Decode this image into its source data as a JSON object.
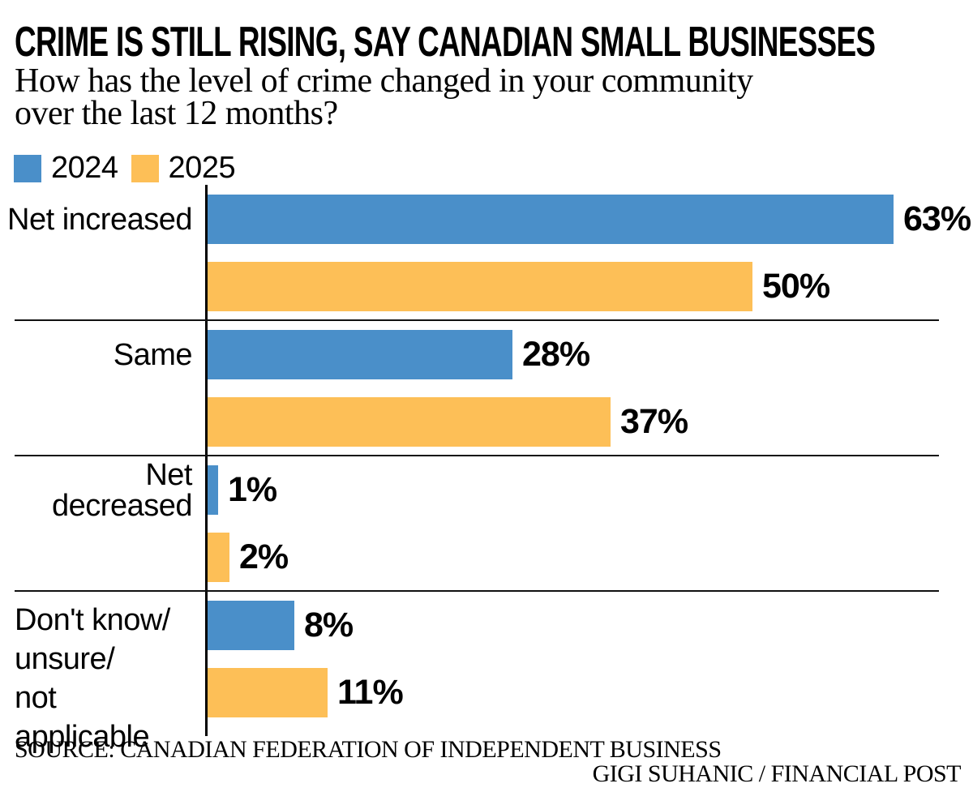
{
  "chart_data": {
    "type": "bar",
    "orientation": "horizontal",
    "title": "CRIME IS STILL RISING, SAY CANADIAN SMALL BUSINESSES",
    "subtitle": "How has the level of crime changed in your community over the last 12 months?",
    "subtitle_lines": [
      "How has the level of crime changed in your community",
      "over the last 12 months?"
    ],
    "categories": [
      "Net increased",
      "Same",
      "Net decreased",
      "Don't know/ unsure/ not applicable"
    ],
    "category_lines": [
      [
        "Net increased"
      ],
      [
        "Same"
      ],
      [
        "Net decreased"
      ],
      [
        "Don't know/",
        "unsure/",
        "not applicable"
      ]
    ],
    "series": [
      {
        "name": "2024",
        "color": "#4a8fc9",
        "values": [
          63,
          28,
          1,
          8
        ],
        "labels": [
          "63%",
          "28%",
          "1%",
          "8%"
        ]
      },
      {
        "name": "2025",
        "color": "#fdbf57",
        "values": [
          50,
          37,
          2,
          11
        ],
        "labels": [
          "50%",
          "37%",
          "2%",
          "11%"
        ]
      }
    ],
    "unit": "%",
    "xlim": [
      0,
      70
    ],
    "grid": false,
    "legend_position": "top-left"
  },
  "legend": {
    "items": [
      {
        "label": "2024",
        "color": "#4a8fc9"
      },
      {
        "label": "2025",
        "color": "#fdbf57"
      }
    ]
  },
  "footer": {
    "source": "SOURCE: CANADIAN FEDERATION OF INDEPENDENT BUSINESS",
    "credit": "GIGI SUHANIC / FINANCIAL POST"
  }
}
